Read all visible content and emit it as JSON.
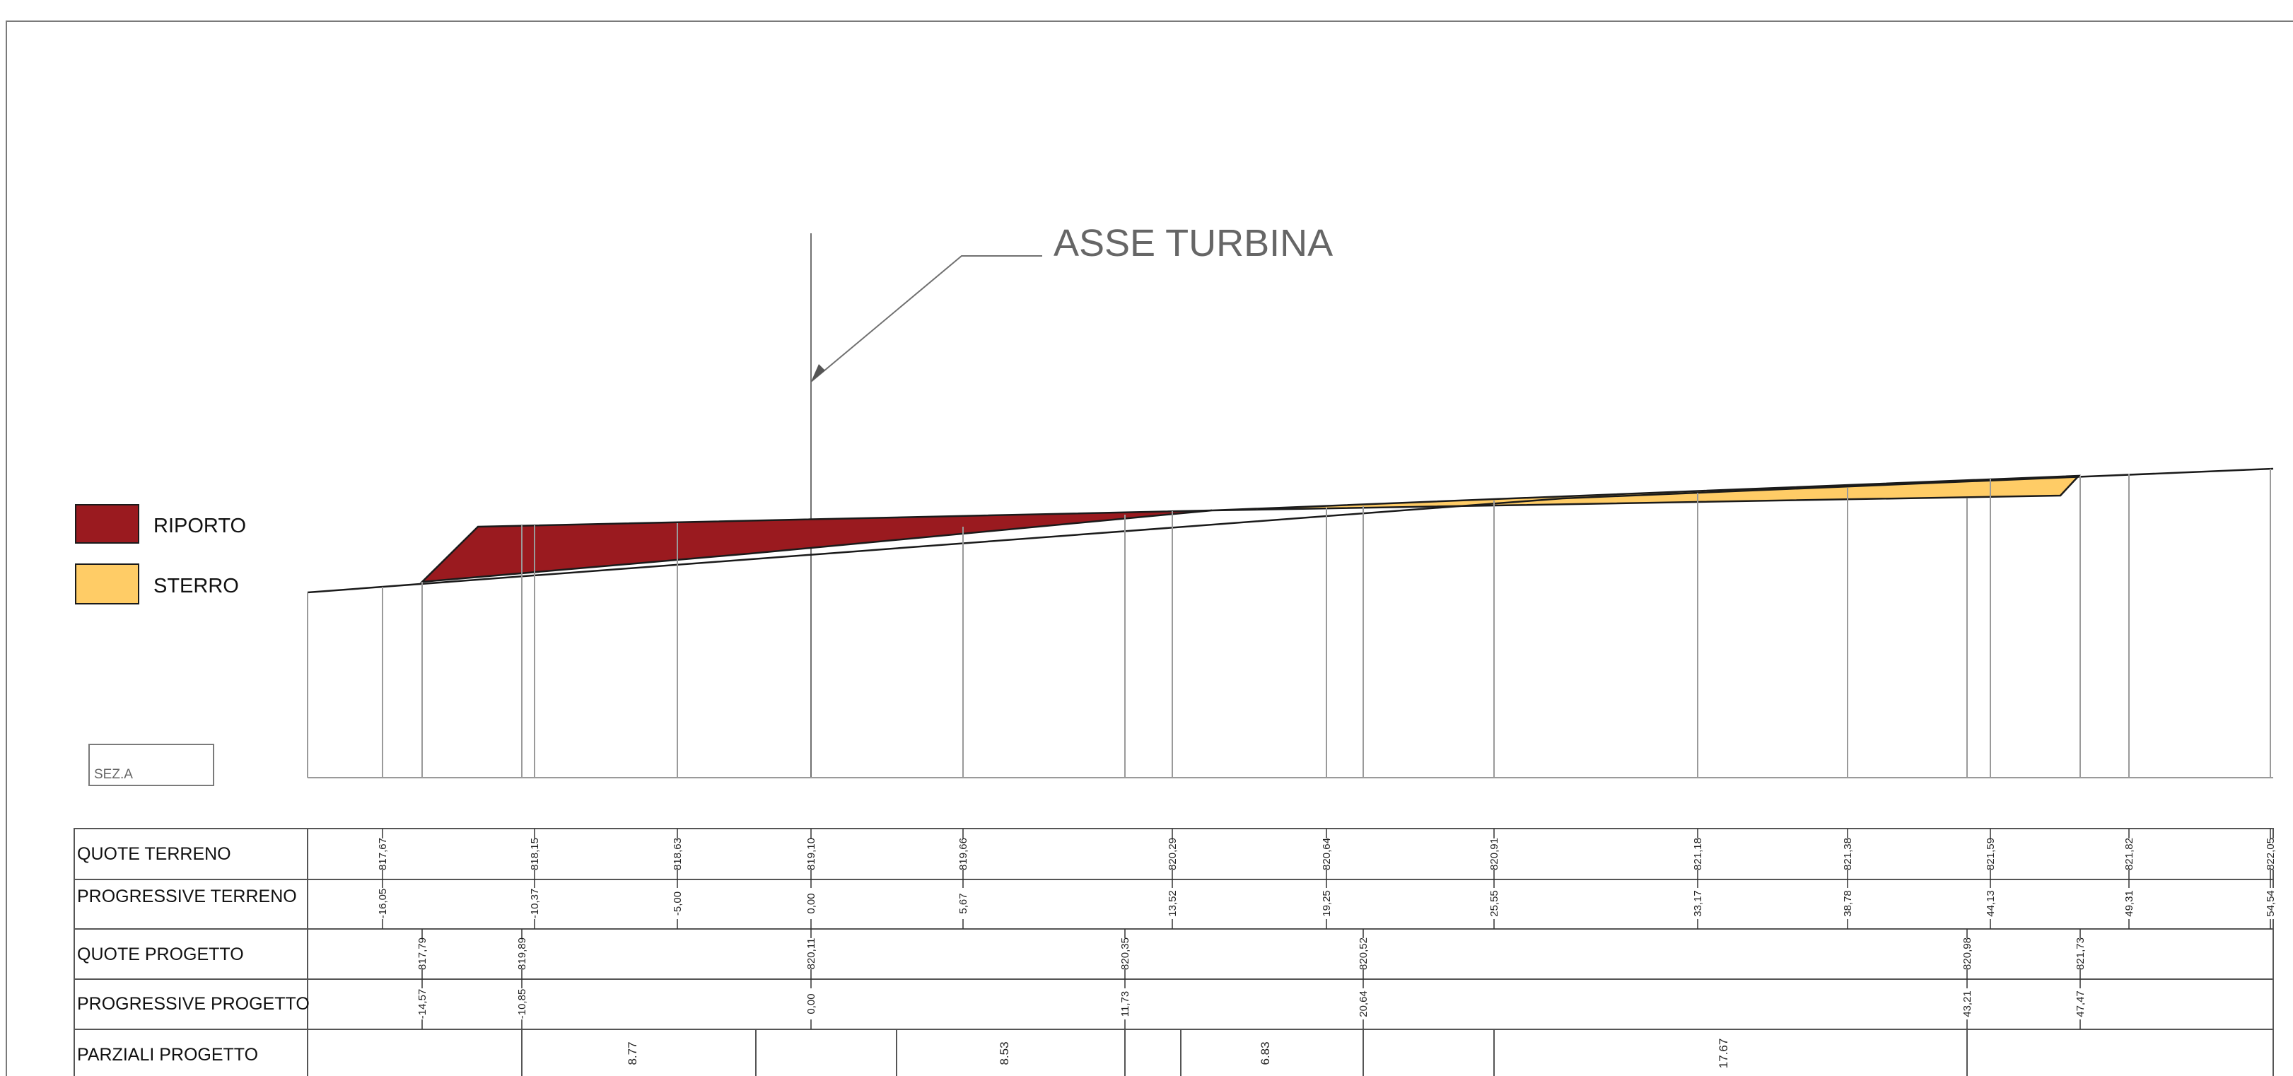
{
  "title": "ASSE TURBINA",
  "section_label": "SEZ.A",
  "legend": [
    {
      "label": "RIPORTO",
      "color": "#9a1a1f"
    },
    {
      "label": "STERRO",
      "color": "#ffcc66"
    }
  ],
  "rows": {
    "quote_terreno": "QUOTE TERRENO",
    "progressive_terreno": "PROGRESSIVE TERRENO",
    "quote_progetto": "QUOTE PROGETTO",
    "progressive_progetto": "PROGRESSIVE PROGETTO",
    "parziali_progetto": "PARZIALI PROGETTO"
  },
  "terrain": {
    "progressive": [
      "-16,05",
      "-10,37",
      "-5,00",
      "0,00",
      "5,67",
      "13,52",
      "19,25",
      "25,55",
      "33,17",
      "38,78",
      "44,13",
      "49,31",
      "54,54"
    ],
    "quote": [
      "817,67",
      "818,15",
      "818,63",
      "819,10",
      "819,66",
      "820,29",
      "820,64",
      "820,91",
      "821,18",
      "821,38",
      "821,59",
      "821,82",
      "822,05"
    ]
  },
  "project": {
    "progressive": [
      "-14,57",
      "-10,85",
      "0,00",
      "11,73",
      "20,64",
      "43,21",
      "47,47"
    ],
    "quote": [
      "817,79",
      "819,89",
      "820,11",
      "820,35",
      "820,52",
      "820,98",
      "821,73"
    ]
  },
  "partials": [
    "8.77",
    "8.53",
    "6.83",
    "17.67"
  ]
}
